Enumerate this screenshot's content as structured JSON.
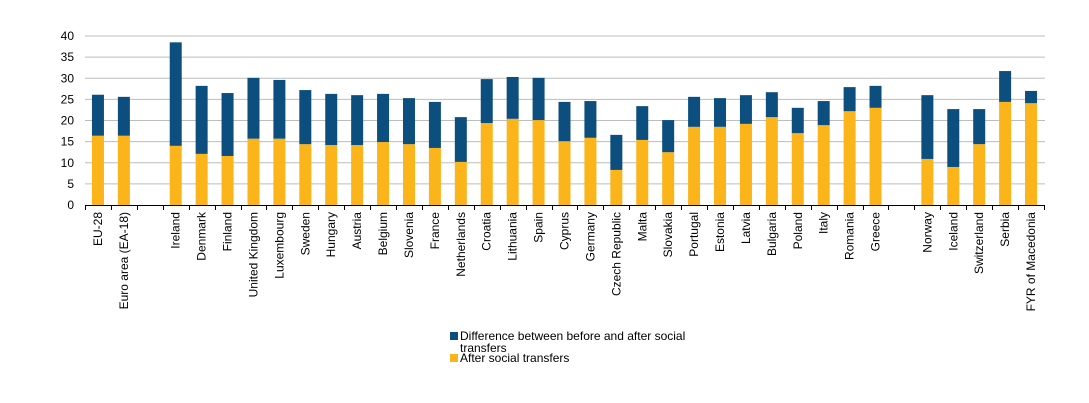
{
  "chart_data": {
    "type": "bar",
    "stacked": true,
    "title": "",
    "xlabel": "",
    "ylabel": "",
    "ylim": [
      0,
      40
    ],
    "yticks": [
      0,
      5,
      10,
      15,
      20,
      25,
      30,
      35,
      40
    ],
    "grid": true,
    "legend_position": "bottom-center",
    "categories": [
      "EU-28",
      "Euro area (EA-18)",
      "",
      "Ireland",
      "Denmark",
      "Finland",
      "United Kingdom",
      "Luxembourg",
      "Sweden",
      "Hungary",
      "Austria",
      "Belgium",
      "Slovenia",
      "France",
      "Netherlands",
      "Croatia",
      "Lithuania",
      "Spain",
      "Cyprus",
      "Germany",
      "Czech Republic",
      "Malta",
      "Slovakia",
      "Portugal",
      "Estonia",
      "Latvia",
      "Bulgaria",
      "Poland",
      "Italy",
      "Romania",
      "Greece",
      "",
      "Norway",
      "Iceland",
      "Switzerland",
      "Serbia",
      "FYR of Macedonia"
    ],
    "series": [
      {
        "name": "After social transfers",
        "color": "#fbb41a",
        "values": [
          16.4,
          16.4,
          null,
          14.0,
          12.1,
          11.6,
          15.7,
          15.7,
          14.4,
          14.2,
          14.2,
          14.9,
          14.4,
          13.5,
          10.2,
          19.4,
          20.4,
          20.1,
          15.1,
          15.9,
          8.3,
          15.4,
          12.5,
          18.5,
          18.5,
          19.2,
          20.8,
          17.0,
          18.9,
          22.2,
          23.0,
          null,
          10.9,
          9.0,
          14.4,
          24.4,
          24.1
        ]
      },
      {
        "name": "Difference between before and after social transfers",
        "color": "#0c4f7e",
        "values": [
          9.7,
          9.2,
          null,
          24.5,
          16.1,
          14.9,
          14.4,
          13.9,
          12.8,
          12.1,
          11.8,
          11.4,
          10.9,
          10.9,
          10.6,
          10.4,
          9.9,
          10.0,
          9.3,
          8.7,
          8.3,
          8.0,
          7.6,
          7.1,
          6.8,
          6.8,
          5.9,
          6.0,
          5.7,
          5.7,
          5.2,
          null,
          15.1,
          13.7,
          8.3,
          7.3,
          2.9
        ]
      }
    ],
    "legend": [
      {
        "label": "Difference between before and after social transfers",
        "color": "#0c4f7e"
      },
      {
        "label": "After social transfers",
        "color": "#fbb41a"
      }
    ]
  }
}
